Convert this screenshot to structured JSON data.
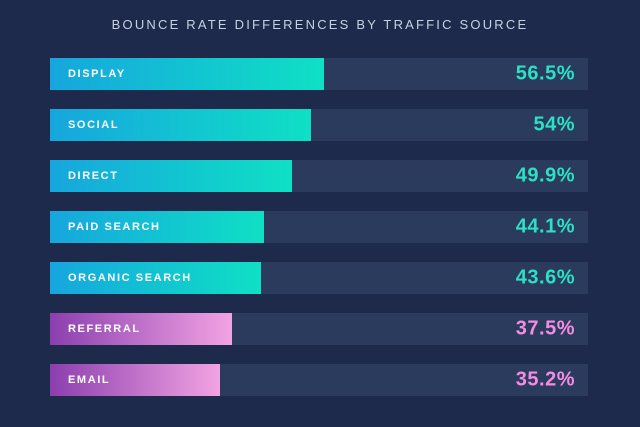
{
  "chart_data": {
    "type": "bar",
    "orientation": "horizontal",
    "title": "BOUNCE RATE DIFFERENCES BY TRAFFIC SOURCE",
    "categories": [
      "DISPLAY",
      "SOCIAL",
      "DIRECT",
      "PAID SEARCH",
      "ORGANIC SEARCH",
      "REFERRAL",
      "EMAIL"
    ],
    "values": [
      56.5,
      54,
      49.9,
      44.1,
      43.6,
      37.5,
      35.2
    ],
    "value_labels": [
      "56.5%",
      "54%",
      "49.9%",
      "44.1%",
      "43.6%",
      "37.5%",
      "35.2%"
    ],
    "unit": "%",
    "bar_groups": [
      "teal",
      "teal",
      "teal",
      "teal",
      "teal",
      "pink",
      "pink"
    ],
    "bar_scale": 0.9,
    "legend": "none",
    "grid": "off",
    "colors": {
      "background": "#1e2a4c",
      "track": "#2b3b5e",
      "title_text": "#c7d0e0",
      "label_text": "#ffffff",
      "teal_gradient": [
        "#16a6de",
        "#0fe0c5"
      ],
      "pink_gradient": [
        "#8b3fae",
        "#f2a3e3"
      ],
      "teal_value_text": "#2ce0c4",
      "pink_value_text": "#f48ce2"
    }
  }
}
